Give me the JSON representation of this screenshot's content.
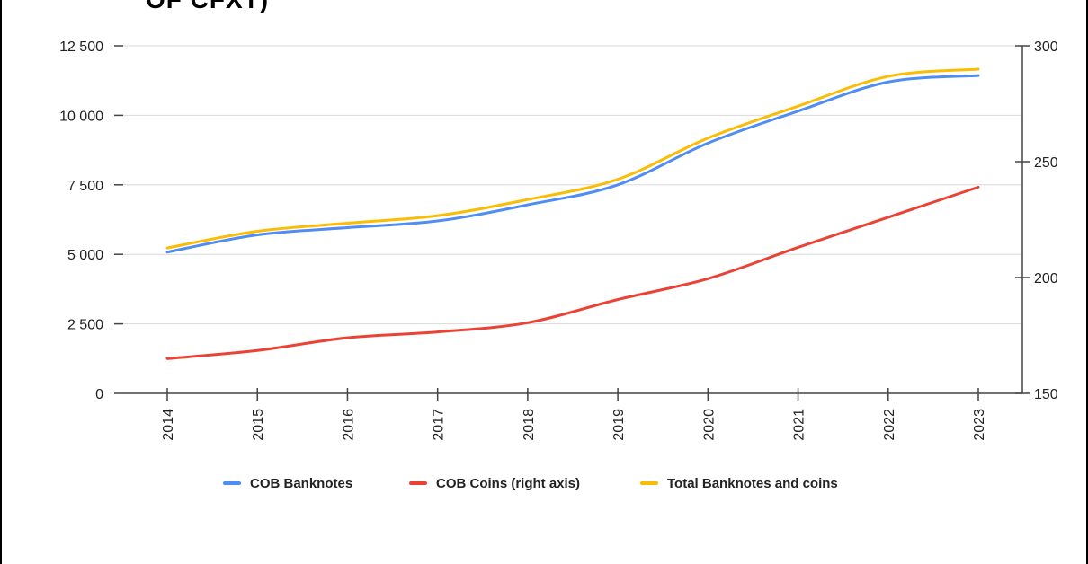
{
  "header": {
    "title_fragment": "OF CFXT)"
  },
  "colors": {
    "banknotes": "#4f8df2",
    "coins": "#ea4335",
    "total": "#fbbc04",
    "axis": "#444444",
    "grid": "#d9d9d9"
  },
  "chart_data": {
    "type": "line",
    "x": [
      "2014",
      "2015",
      "2016",
      "2017",
      "2018",
      "2019",
      "2020",
      "2021",
      "2022",
      "2023"
    ],
    "y_left": {
      "min": 0,
      "max": 12500,
      "ticks": [
        0,
        2500,
        5000,
        7500,
        10000,
        12500
      ],
      "tick_labels": [
        "0",
        "2 500",
        "5 000",
        "7 500",
        "10 000",
        "12 500"
      ]
    },
    "y_right": {
      "min": 150,
      "max": 300,
      "ticks": [
        150,
        200,
        250,
        300
      ],
      "tick_labels": [
        "150",
        "200",
        "250",
        "300"
      ]
    },
    "series": [
      {
        "name": "COB Banknotes",
        "axis": "left",
        "color": "#4f8df2",
        "values": [
          5080,
          5700,
          5960,
          6200,
          6780,
          7500,
          9000,
          10150,
          11200,
          11430
        ]
      },
      {
        "name": "COB Coins (right axis)",
        "axis": "right",
        "color": "#ea4335",
        "values": [
          165,
          168.5,
          174,
          176.5,
          180.5,
          190.5,
          199.5,
          213,
          226,
          239
        ]
      },
      {
        "name": "Total Banknotes and coins",
        "axis": "left",
        "color": "#fbbc04",
        "values": [
          5230,
          5830,
          6120,
          6390,
          6970,
          7700,
          9180,
          10330,
          11400,
          11660
        ]
      }
    ],
    "legend_position": "bottom-center",
    "grid": true
  }
}
